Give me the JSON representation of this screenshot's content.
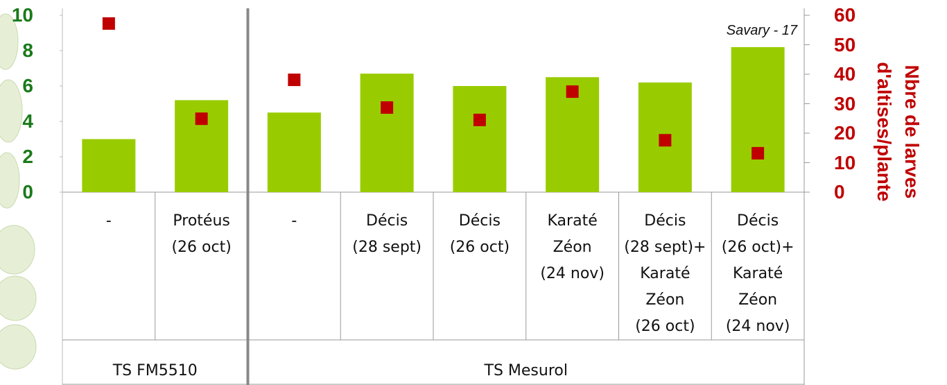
{
  "chart_data": {
    "type": "bar",
    "annotation": "Savary - 17",
    "y2label": "Nbre de larves\nd'altises/plante",
    "groups": [
      {
        "name": "TS FM5510",
        "categories": [
          "-",
          "Protéus\n(26 oct)"
        ]
      },
      {
        "name": "TS Mesurol",
        "categories": [
          "-",
          "Décis\n(28 sept)",
          "Décis\n(26 oct)",
          "Karaté\nZéon\n(24 nov)",
          "Décis\n(28 sept)+\nKaraté\nZéon\n(26 oct)",
          "Décis\n(26 oct)+\nKaraté\nZéon\n(24 nov)"
        ]
      }
    ],
    "series": [
      {
        "type": "bar",
        "color": "#99cc00",
        "values": [
          3.0,
          5.2,
          4.5,
          6.7,
          6.0,
          6.5,
          6.2,
          8.2
        ]
      },
      {
        "type": "scatter",
        "color": "#c00000",
        "axis": "y2",
        "values": [
          57.2,
          24.9,
          38.1,
          28.7,
          24.5,
          34.1,
          17.6,
          13.2
        ]
      }
    ],
    "ylim": [
      0,
      10
    ],
    "yticks": [
      0,
      2,
      4,
      6,
      8,
      10
    ],
    "ytick_color": "#1a7a1a",
    "y2lim": [
      0,
      60
    ],
    "y2ticks": [
      0,
      10,
      20,
      30,
      40,
      50,
      60
    ],
    "y2tick_color": "#c00000"
  }
}
